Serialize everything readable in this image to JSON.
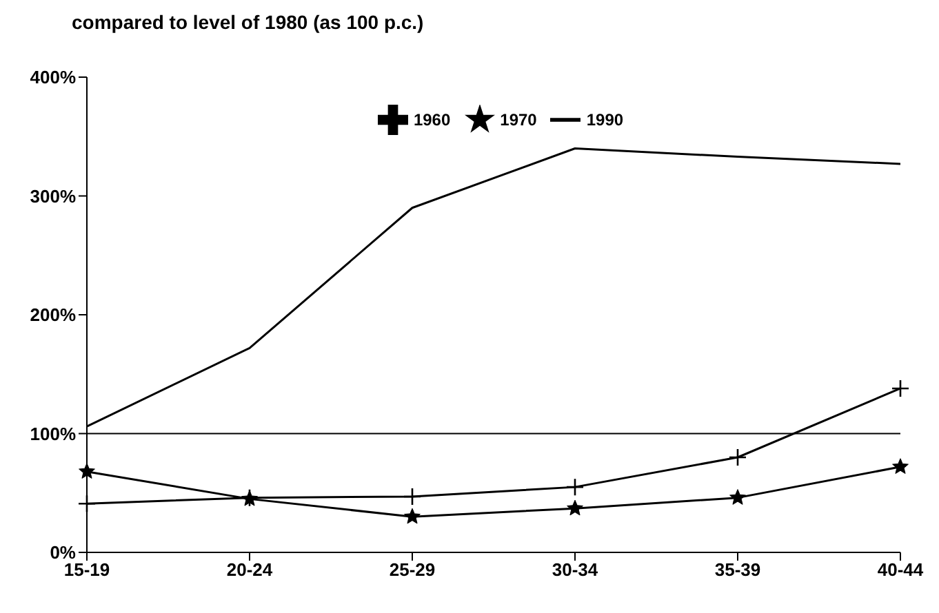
{
  "chart_data": {
    "type": "line",
    "title": "compared to level of 1980 (as 100 p.c.)",
    "categories": [
      "15-19",
      "20-24",
      "25-29",
      "30-34",
      "35-39",
      "40-44"
    ],
    "series": [
      {
        "name": "1960",
        "color": "#000000",
        "marker": "cross",
        "values": [
          41,
          46,
          47,
          55,
          80,
          138
        ]
      },
      {
        "name": "1970",
        "color": "#000000",
        "marker": "star",
        "values": [
          68,
          45,
          30,
          37,
          46,
          72
        ]
      },
      {
        "name": "1990",
        "color": "#000000",
        "marker": "none",
        "values": [
          106,
          172,
          290,
          340,
          333,
          327
        ]
      }
    ],
    "ylim": [
      0,
      400
    ],
    "yticks": [
      {
        "value": 0,
        "label": "0%"
      },
      {
        "value": 100,
        "label": "100%"
      },
      {
        "value": 200,
        "label": "200%"
      },
      {
        "value": 300,
        "label": "300%"
      },
      {
        "value": 400,
        "label": "400%"
      }
    ],
    "ref_lines": [
      {
        "axis": "y",
        "value": 100,
        "color": "#000000"
      }
    ],
    "grid": false,
    "legend": "top",
    "line_style": "solid"
  }
}
